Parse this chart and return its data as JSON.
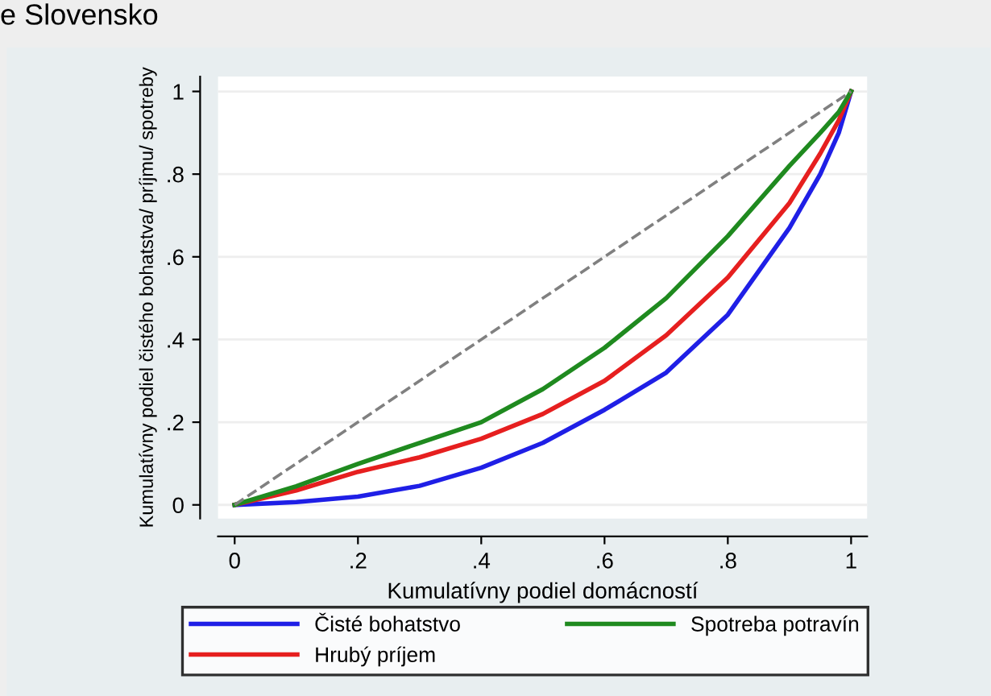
{
  "chart_data": {
    "type": "line",
    "title": "e Slovensko",
    "xlabel": "Kumulatívny podiel domácností",
    "ylabel": "Kumulatívny podiel čistého bohatstva/ príjmu/ spotreby",
    "x": [
      0,
      0.1,
      0.2,
      0.3,
      0.4,
      0.5,
      0.6,
      0.7,
      0.8,
      0.9,
      0.95,
      0.98,
      1
    ],
    "series": [
      {
        "name": "Čisté bohatstvo",
        "color": "#1f1fe6",
        "values": [
          0,
          0.007,
          0.02,
          0.046,
          0.09,
          0.15,
          0.23,
          0.32,
          0.46,
          0.67,
          0.8,
          0.9,
          1
        ]
      },
      {
        "name": "Hrubý príjem",
        "color": "#e61f1f",
        "values": [
          0,
          0.035,
          0.08,
          0.115,
          0.16,
          0.22,
          0.3,
          0.41,
          0.55,
          0.73,
          0.85,
          0.93,
          1
        ]
      },
      {
        "name": "Spotreba potravín",
        "color": "#1f8a1f",
        "values": [
          0,
          0.045,
          0.099,
          0.15,
          0.2,
          0.28,
          0.38,
          0.5,
          0.65,
          0.82,
          0.9,
          0.95,
          1
        ]
      },
      {
        "color": "#808080",
        "line_style": "dashed",
        "x": [
          0,
          1
        ],
        "values": [
          0,
          1
        ]
      }
    ],
    "xlim": [
      -0.027,
      1.026
    ],
    "ylim": [
      -0.033,
      1.036
    ],
    "xticks": [
      0,
      {
        "value": 0.2,
        "label": ".2"
      },
      {
        "value": 0.4,
        "label": ".4"
      },
      {
        "value": 0.6,
        "label": ".6"
      },
      {
        "value": 0.8,
        "label": ".8"
      },
      1
    ],
    "yticks": [
      0,
      {
        "value": 0.2,
        "label": ".2"
      },
      {
        "value": 0.4,
        "label": ".4"
      },
      {
        "value": 0.6,
        "label": ".6"
      },
      {
        "value": 0.8,
        "label": ".8"
      },
      1
    ],
    "grid": "y",
    "legend": "bottom",
    "line_style": "solid"
  }
}
